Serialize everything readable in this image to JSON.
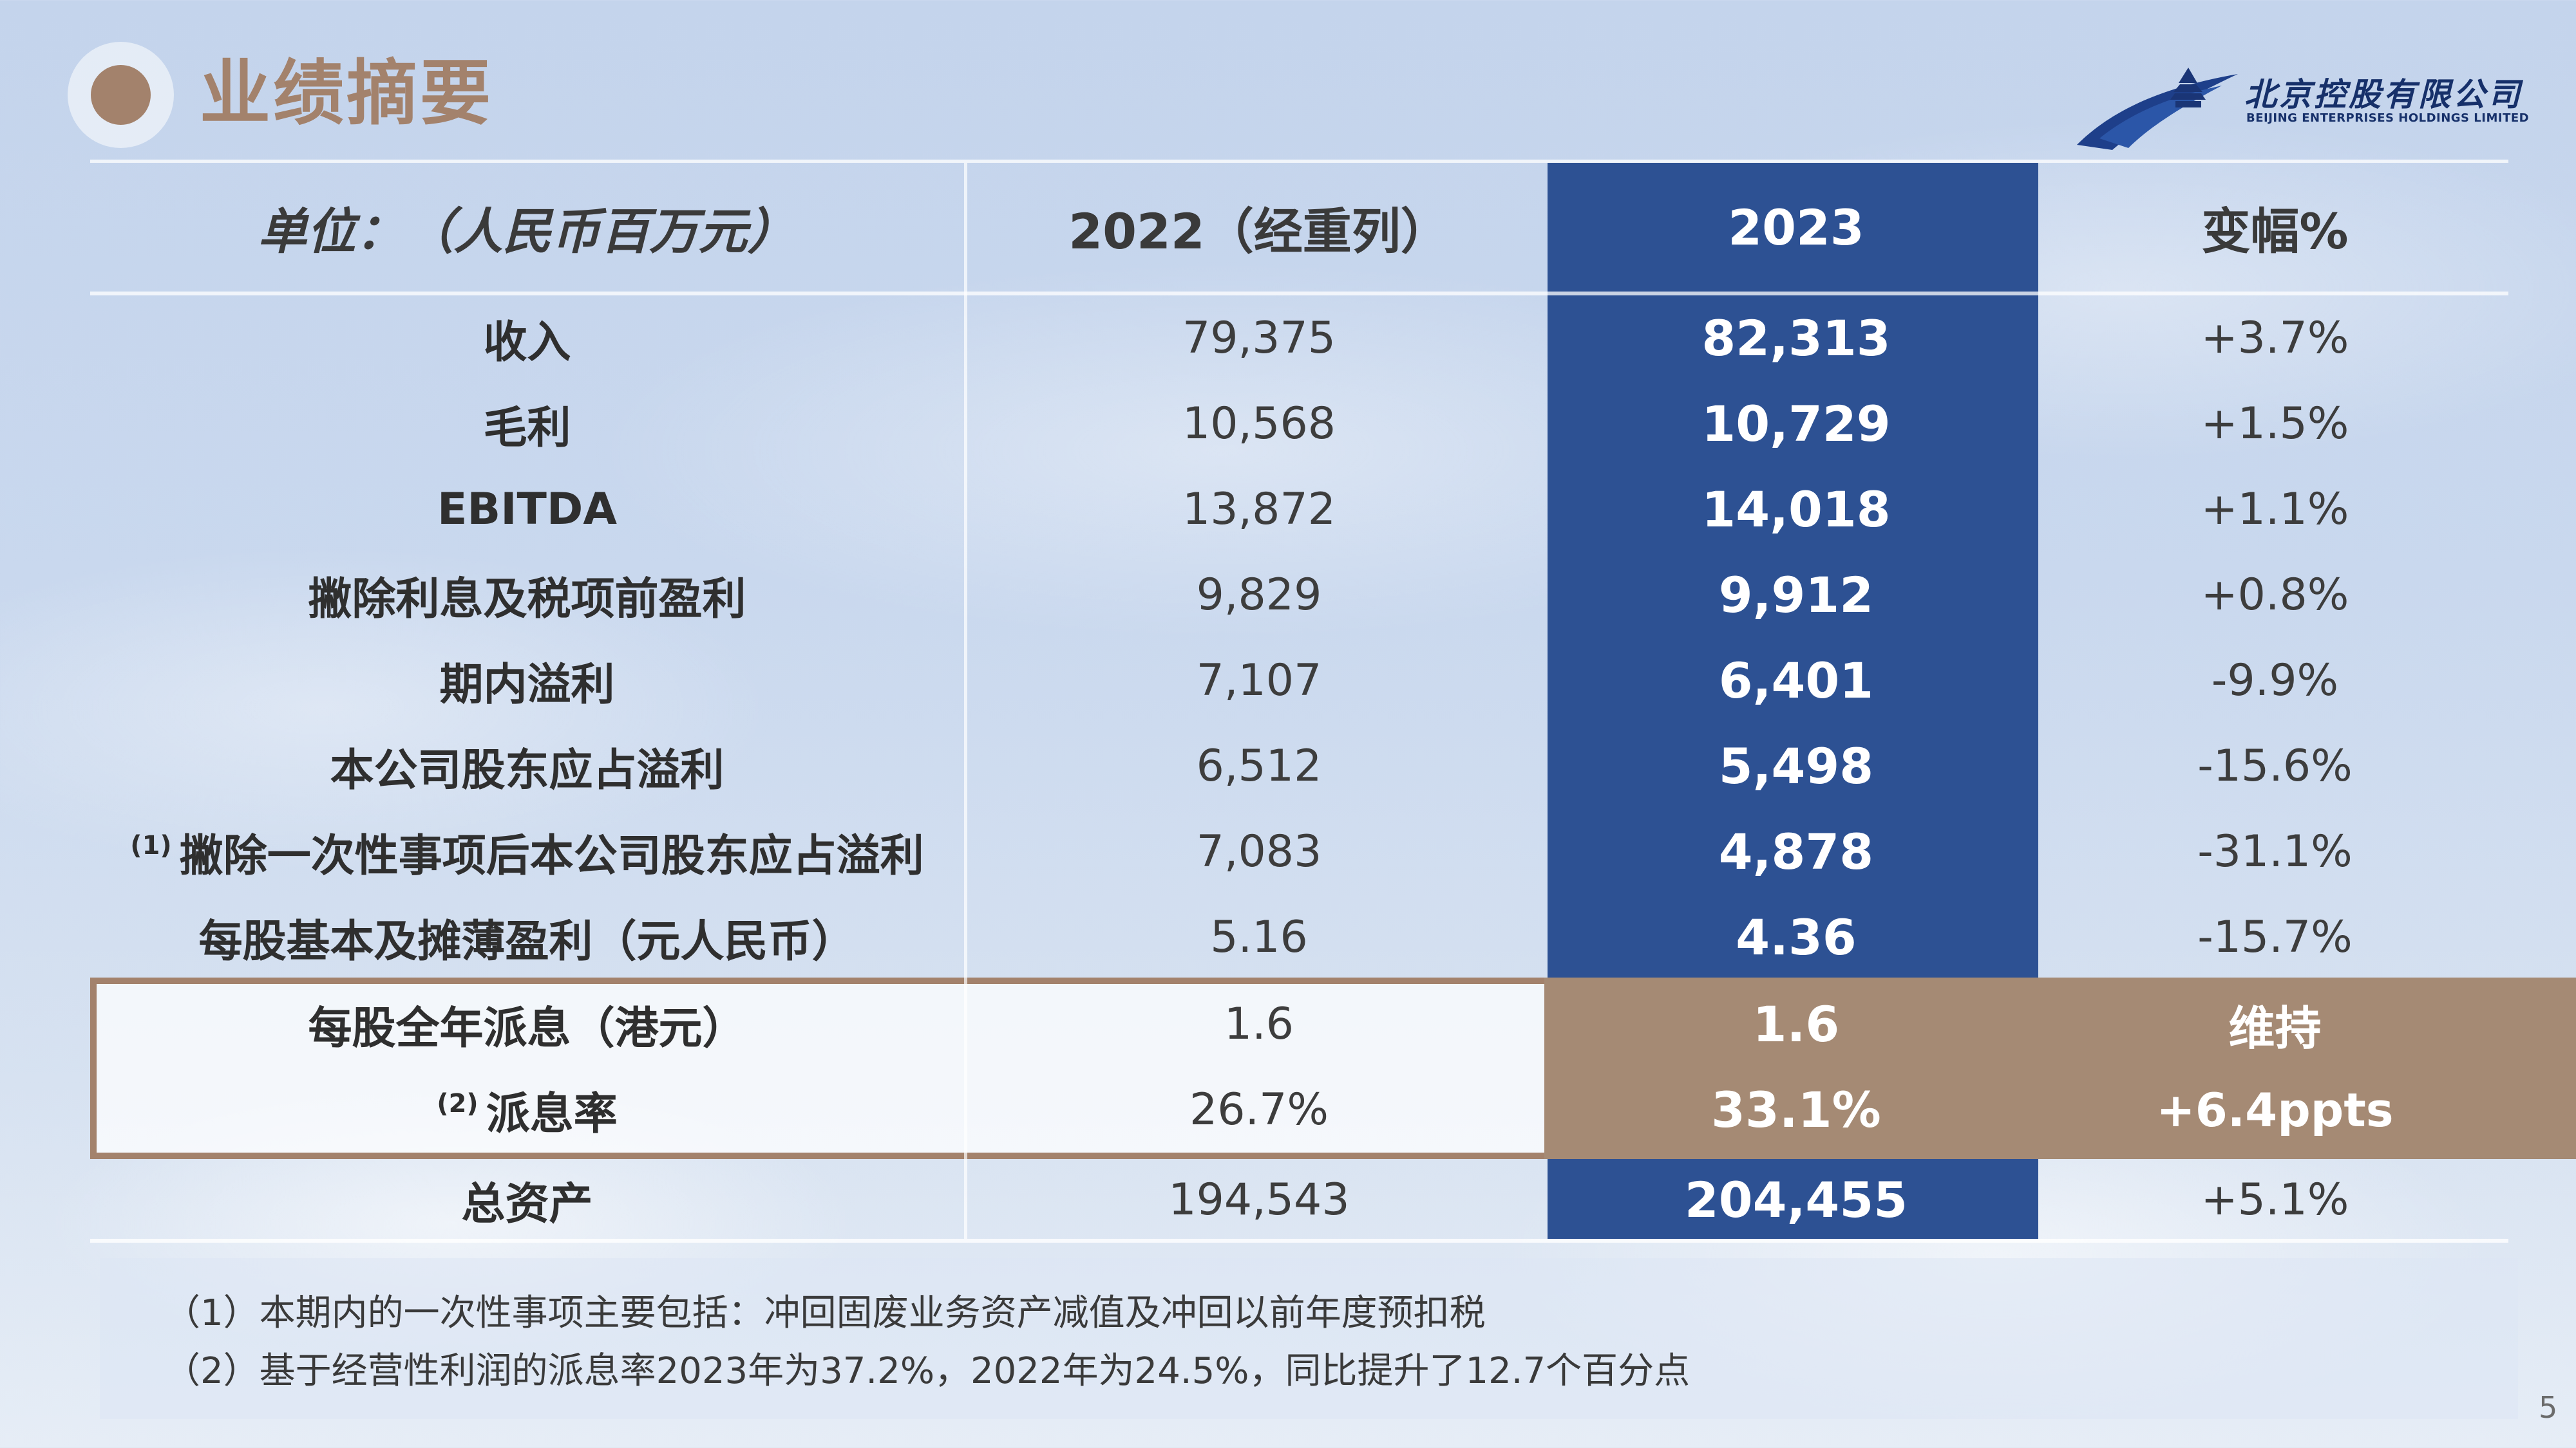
{
  "header": {
    "title": "业绩摘要",
    "logo": {
      "icon": "temple-of-heaven-logo-icon",
      "name_cn": "北京控股有限公司",
      "name_en": "BEIJING ENTERPRISES HOLDINGS LIMITED",
      "color": "#16306a"
    }
  },
  "colors": {
    "accent_brown": "#a3826c",
    "highlight_blue": "#2d5193",
    "dividend_brown": "#a58a74"
  },
  "table": {
    "headers": [
      "单位：（人民币百万元）",
      "2022（经重列）",
      "2023",
      "变幅%"
    ],
    "rows": [
      {
        "note": "",
        "label": "收入",
        "y2022": "79,375",
        "y2023": "82,313",
        "change": "+3.7%"
      },
      {
        "note": "",
        "label": "毛利",
        "y2022": "10,568",
        "y2023": "10,729",
        "change": "+1.5%"
      },
      {
        "note": "",
        "label": "EBITDA",
        "y2022": "13,872",
        "y2023": "14,018",
        "change": "+1.1%"
      },
      {
        "note": "",
        "label": "撇除利息及税项前盈利",
        "y2022": "9,829",
        "y2023": "9,912",
        "change": "+0.8%"
      },
      {
        "note": "",
        "label": "期内溢利",
        "y2022": "7,107",
        "y2023": "6,401",
        "change": "-9.9%"
      },
      {
        "note": "",
        "label": "本公司股东应占溢利",
        "y2022": "6,512",
        "y2023": "5,498",
        "change": "-15.6%"
      },
      {
        "note": "(1)",
        "label": "撇除一次性事项后本公司股东应占溢利",
        "y2022": "7,083",
        "y2023": "4,878",
        "change": "-31.1%"
      },
      {
        "note": "",
        "label": "每股基本及摊薄盈利（元人民币）",
        "y2022": "5.16",
        "y2023": "4.36",
        "change": "-15.7%"
      },
      {
        "note": "",
        "label": "每股全年派息（港元）",
        "y2022": "1.6",
        "y2023": "1.6",
        "change": "维持"
      },
      {
        "note": "(2)",
        "label": "派息率",
        "y2022": "26.7%",
        "y2023": "33.1%",
        "change": "+6.4ppts"
      },
      {
        "note": "",
        "label": "总资产",
        "y2022": "194,543",
        "y2023": "204,455",
        "change": "+5.1%"
      }
    ]
  },
  "footnotes": [
    "（1）本期内的一次性事项主要包括：冲回固废业务资产减值及冲回以前年度预扣税",
    "（2）基于经营性利润的派息率2023年为37.2%，2022年为24.5%，同比提升了12.7个百分点"
  ],
  "page_number": "5"
}
